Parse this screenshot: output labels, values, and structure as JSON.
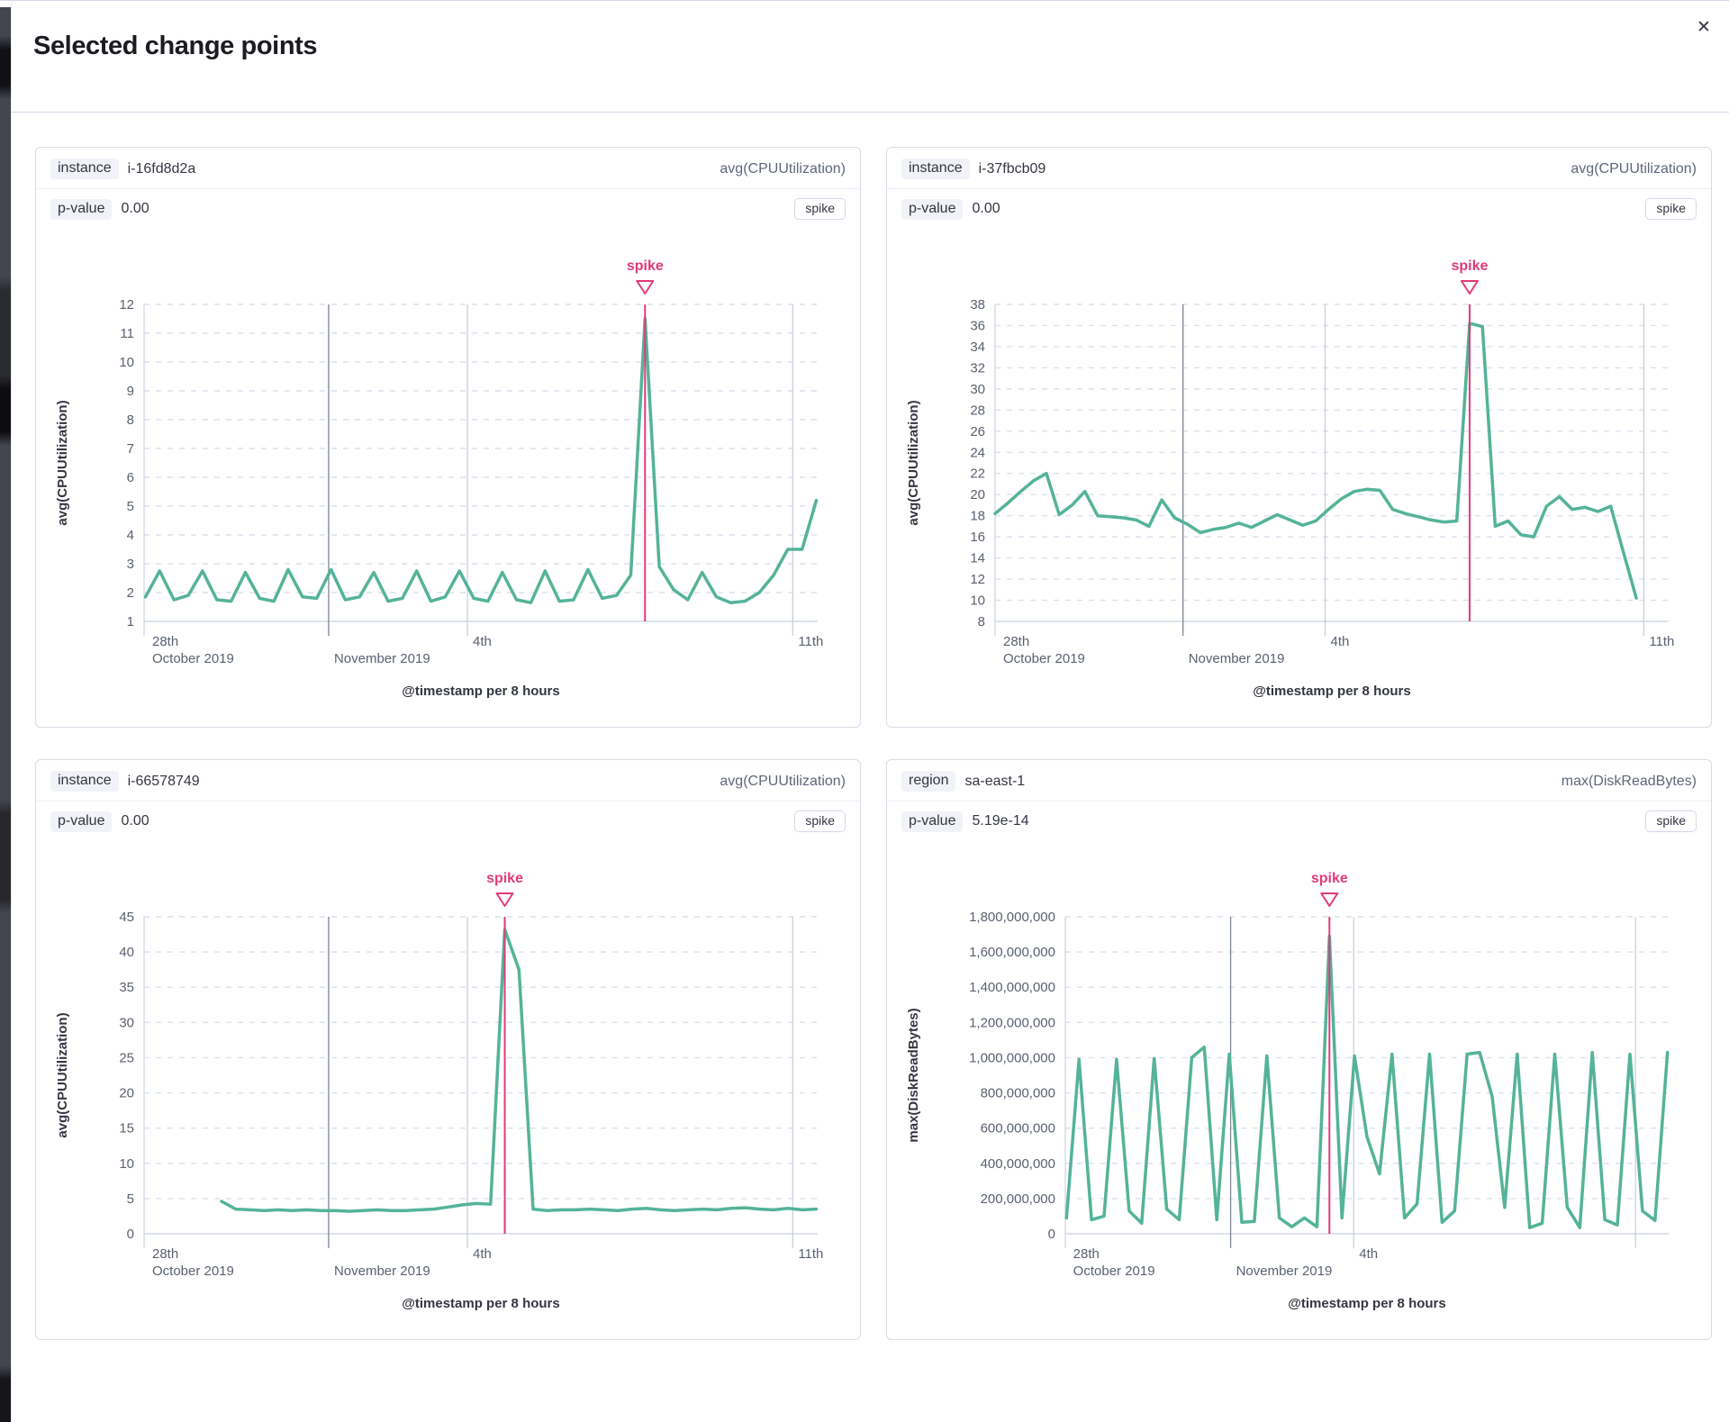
{
  "modal": {
    "title": "Selected change points",
    "close_icon": "✕"
  },
  "colors": {
    "series_green": "#54b399",
    "annotation_pink": "#e23a79",
    "month_line": "#7d8595",
    "day_line": "#c9d0dc",
    "grid_dashed": "#dce1eb",
    "axis_line": "#d3dae6",
    "tick_text": "#5a6270",
    "axis_title_text": "#343741"
  },
  "panels": [
    {
      "split_field": "instance",
      "split_value": "i-16fd8d2a",
      "metric": "avg(CPUUtilization)",
      "p_label": "p-value",
      "p_value": "0.00",
      "type_badge": "spike"
    },
    {
      "split_field": "instance",
      "split_value": "i-37fbcb09",
      "metric": "avg(CPUUtilization)",
      "p_label": "p-value",
      "p_value": "0.00",
      "type_badge": "spike"
    },
    {
      "split_field": "instance",
      "split_value": "i-66578749",
      "metric": "avg(CPUUtilization)",
      "p_label": "p-value",
      "p_value": "0.00",
      "type_badge": "spike"
    },
    {
      "split_field": "region",
      "split_value": "sa-east-1",
      "metric": "max(DiskReadBytes)",
      "p_label": "p-value",
      "p_value": "5.19e-14",
      "type_badge": "spike"
    }
  ],
  "chart_data": [
    {
      "type": "line",
      "title": "instance i-16fd8d2a",
      "xlabel": "@timestamp per 8 hours",
      "ylabel": "avg(CPUUtilization)",
      "ylim": [
        1,
        12
      ],
      "yticks": [
        [
          12,
          "12"
        ],
        [
          11,
          "11"
        ],
        [
          10,
          "10"
        ],
        [
          9,
          "9"
        ],
        [
          8,
          "8"
        ],
        [
          7,
          "7"
        ],
        [
          6,
          "6"
        ],
        [
          5,
          "5"
        ],
        [
          4,
          "4"
        ],
        [
          3,
          "3"
        ],
        [
          2,
          "2"
        ],
        [
          1,
          "1"
        ]
      ],
      "xticks": [
        [
          0.004,
          "28th",
          "October 2019",
          "start"
        ],
        [
          0.274,
          "",
          "November 2019",
          "month"
        ],
        [
          0.48,
          "4th",
          "",
          "minor"
        ],
        [
          0.963,
          "11th",
          "",
          "minor"
        ]
      ],
      "x_start": 0.002,
      "x_end": 0.998,
      "annotation": {
        "label": "spike",
        "at": "max"
      },
      "values": [
        1.85,
        2.75,
        1.75,
        1.9,
        2.75,
        1.75,
        1.7,
        2.7,
        1.8,
        1.7,
        2.8,
        1.85,
        1.8,
        2.8,
        1.75,
        1.85,
        2.7,
        1.7,
        1.8,
        2.75,
        1.7,
        1.85,
        2.75,
        1.8,
        1.7,
        2.7,
        1.75,
        1.65,
        2.75,
        1.7,
        1.75,
        2.8,
        1.8,
        1.9,
        2.6,
        11.5,
        2.9,
        2.1,
        1.75,
        2.7,
        1.85,
        1.65,
        1.7,
        2.0,
        2.6,
        3.5,
        3.5,
        5.2
      ]
    },
    {
      "type": "line",
      "title": "instance i-37fbcb09",
      "xlabel": "@timestamp per 8 hours",
      "ylabel": "avg(CPUUtilization)",
      "ylim": [
        8,
        38
      ],
      "yticks": [
        [
          38,
          "38"
        ],
        [
          36,
          "36"
        ],
        [
          34,
          "34"
        ],
        [
          32,
          "32"
        ],
        [
          30,
          "30"
        ],
        [
          28,
          "28"
        ],
        [
          26,
          "26"
        ],
        [
          24,
          "24"
        ],
        [
          22,
          "22"
        ],
        [
          20,
          "20"
        ],
        [
          18,
          "18"
        ],
        [
          16,
          "16"
        ],
        [
          14,
          "14"
        ],
        [
          12,
          "12"
        ],
        [
          10,
          "10"
        ],
        [
          8,
          "8"
        ]
      ],
      "xticks": [
        [
          0.004,
          "28th",
          "October 2019",
          "start"
        ],
        [
          0.279,
          "",
          "November 2019",
          "month"
        ],
        [
          0.49,
          "4th",
          "",
          "minor"
        ],
        [
          0.963,
          "11th",
          "",
          "minor"
        ]
      ],
      "x_start": 0.0,
      "x_end": 0.952,
      "annotation": {
        "label": "spike",
        "at": "max"
      },
      "values": [
        18.2,
        19.2,
        20.3,
        21.3,
        22.0,
        18.1,
        19.0,
        20.3,
        18.0,
        17.9,
        17.8,
        17.6,
        17.0,
        19.5,
        17.8,
        17.2,
        16.4,
        16.7,
        16.9,
        17.3,
        16.9,
        17.5,
        18.1,
        17.6,
        17.1,
        17.5,
        18.6,
        19.6,
        20.3,
        20.5,
        20.4,
        18.6,
        18.2,
        17.9,
        17.6,
        17.4,
        17.5,
        36.2,
        35.9,
        17.0,
        17.5,
        16.2,
        16.0,
        18.9,
        19.8,
        18.6,
        18.8,
        18.4,
        18.9,
        14.5,
        10.2
      ]
    },
    {
      "type": "line",
      "title": "instance i-66578749",
      "xlabel": "@timestamp per 8 hours",
      "ylabel": "avg(CPUUtilization)",
      "ylim": [
        0,
        45
      ],
      "yticks": [
        [
          45,
          "45"
        ],
        [
          40,
          "40"
        ],
        [
          35,
          "35"
        ],
        [
          30,
          "30"
        ],
        [
          25,
          "25"
        ],
        [
          20,
          "20"
        ],
        [
          15,
          "15"
        ],
        [
          10,
          "10"
        ],
        [
          5,
          "5"
        ],
        [
          0,
          "0"
        ]
      ],
      "xticks": [
        [
          0.004,
          "28th",
          "October 2019",
          "start"
        ],
        [
          0.274,
          "",
          "November 2019",
          "month"
        ],
        [
          0.48,
          "4th",
          "",
          "minor"
        ],
        [
          0.963,
          "11th",
          "",
          "minor"
        ]
      ],
      "x_start": 0.115,
      "x_end": 0.998,
      "annotation": {
        "label": "spike",
        "at": "max"
      },
      "values": [
        4.6,
        3.5,
        3.4,
        3.3,
        3.4,
        3.3,
        3.4,
        3.3,
        3.3,
        3.2,
        3.3,
        3.4,
        3.3,
        3.3,
        3.4,
        3.5,
        3.8,
        4.1,
        4.3,
        4.2,
        43.2,
        37.5,
        3.5,
        3.3,
        3.4,
        3.4,
        3.5,
        3.4,
        3.3,
        3.5,
        3.6,
        3.4,
        3.3,
        3.4,
        3.5,
        3.4,
        3.6,
        3.7,
        3.5,
        3.4,
        3.6,
        3.4,
        3.5
      ]
    },
    {
      "type": "line",
      "title": "region sa-east-1",
      "xlabel": "@timestamp per 8 hours",
      "ylabel": "max(DiskReadBytes)",
      "ylim": [
        0,
        1800000000
      ],
      "yticks": [
        [
          1800000000,
          "1,800,000,000"
        ],
        [
          1600000000,
          "1,600,000,000"
        ],
        [
          1400000000,
          "1,400,000,000"
        ],
        [
          1200000000,
          "1,200,000,000"
        ],
        [
          1000000000,
          "1,000,000,000"
        ],
        [
          800000000,
          "800,000,000"
        ],
        [
          600000000,
          "600,000,000"
        ],
        [
          400000000,
          "400,000,000"
        ],
        [
          200000000,
          "200,000,000"
        ],
        [
          0,
          "0"
        ]
      ],
      "xticks": [
        [
          0.004,
          "28th",
          "October 2019",
          "start"
        ],
        [
          0.274,
          "",
          "November 2019",
          "month"
        ],
        [
          0.478,
          "4th",
          "",
          "minor"
        ],
        [
          0.945,
          "",
          "",
          "minor"
        ]
      ],
      "x_start": 0.002,
      "x_end": 0.998,
      "annotation": {
        "label": "spike",
        "at": "max"
      },
      "values": [
        90000000,
        990000000,
        80000000,
        100000000,
        990000000,
        130000000,
        60000000,
        995000000,
        140000000,
        80000000,
        1000000000,
        1060000000,
        80000000,
        1020000000,
        65000000,
        70000000,
        1010000000,
        90000000,
        40000000,
        90000000,
        40000000,
        1690000000,
        90000000,
        1010000000,
        550000000,
        340000000,
        1020000000,
        90000000,
        170000000,
        1020000000,
        65000000,
        130000000,
        1020000000,
        1030000000,
        780000000,
        150000000,
        1020000000,
        35000000,
        60000000,
        1020000000,
        150000000,
        35000000,
        1030000000,
        80000000,
        50000000,
        1020000000,
        130000000,
        75000000,
        1030000000
      ]
    }
  ]
}
